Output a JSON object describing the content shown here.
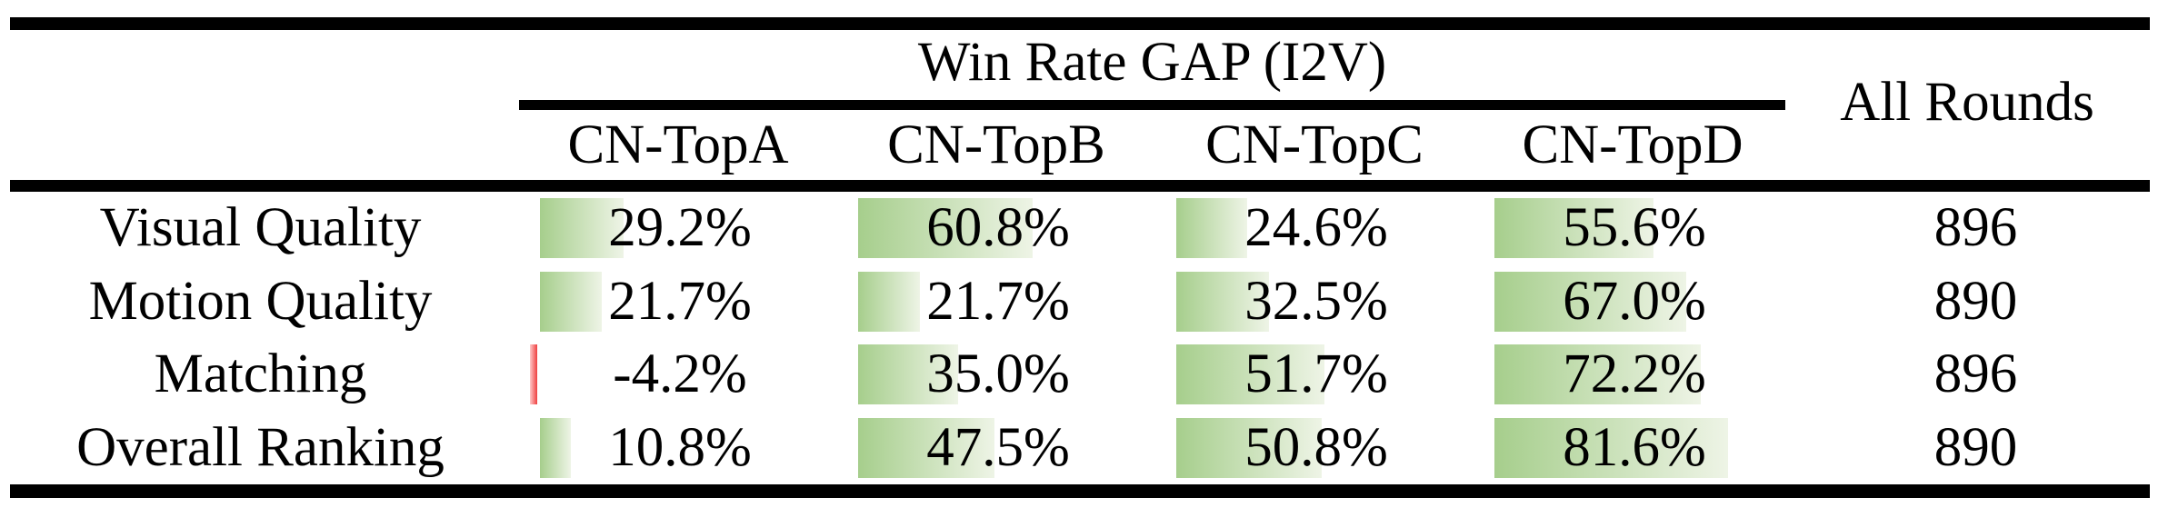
{
  "table": {
    "group_header": "Win Rate GAP (I2V)",
    "rounds_header": "All Rounds",
    "columns": [
      "CN-TopA",
      "CN-TopB",
      "CN-TopC",
      "CN-TopD"
    ],
    "rows": [
      {
        "label": "Visual Quality",
        "values": [
          29.2,
          60.8,
          24.6,
          55.6
        ],
        "display": [
          "29.2%",
          "60.8%",
          "24.6%",
          "55.6%"
        ],
        "rounds": "896"
      },
      {
        "label": "Motion Quality",
        "values": [
          21.7,
          21.7,
          32.5,
          67.0
        ],
        "display": [
          "21.7%",
          "21.7%",
          "32.5%",
          "67.0%"
        ],
        "rounds": "890"
      },
      {
        "label": "Matching",
        "values": [
          -4.2,
          35.0,
          51.7,
          72.2
        ],
        "display": [
          "-4.2%",
          "35.0%",
          "51.7%",
          "72.2%"
        ],
        "rounds": "896"
      },
      {
        "label": "Overall Ranking",
        "values": [
          10.8,
          47.5,
          50.8,
          81.6
        ],
        "display": [
          "10.8%",
          "47.5%",
          "50.8%",
          "81.6%"
        ],
        "rounds": "890"
      }
    ],
    "colors": {
      "bar_positive_start": "#a6ce8c",
      "bar_positive_end": "#eef4e6",
      "bar_negative_start": "#ffc9c9",
      "bar_negative_end": "#ee3f3f",
      "rule": "#000000",
      "text": "#000000"
    }
  }
}
